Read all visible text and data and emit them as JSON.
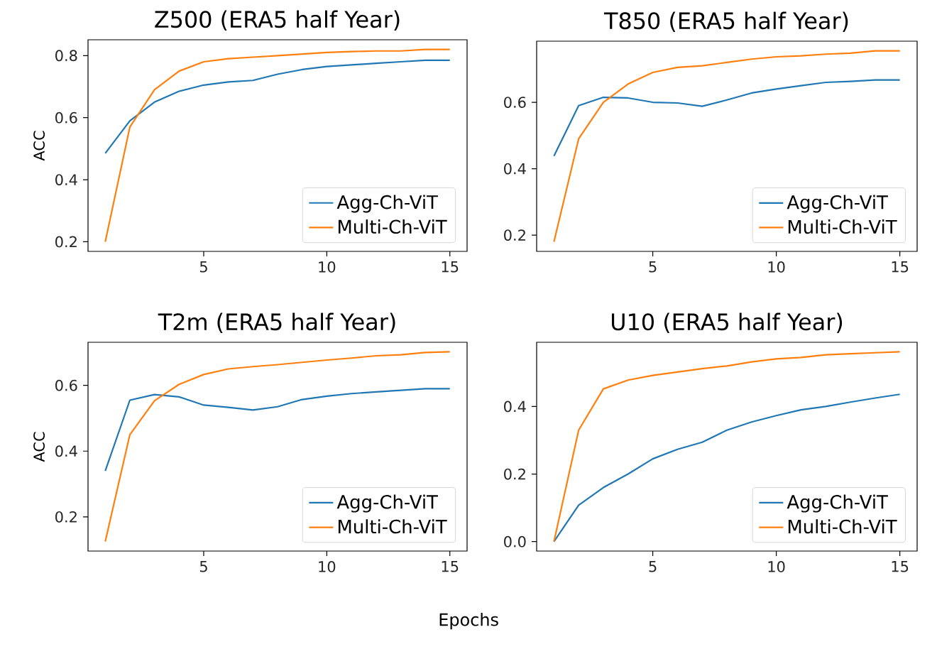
{
  "chart_data": [
    {
      "type": "line",
      "title": "Z500 (ERA5 half Year)",
      "ylabel": "ACC",
      "legend": "bottom right",
      "x": [
        1,
        2,
        3,
        4,
        5,
        6,
        7,
        8,
        9,
        10,
        11,
        12,
        13,
        14,
        15
      ],
      "xlim": [
        0.3,
        15.7
      ],
      "ylim": [
        0.169,
        0.851
      ],
      "xticks": [
        5,
        10,
        15
      ],
      "yticks": [
        0.2,
        0.4,
        0.6,
        0.8
      ],
      "series": [
        {
          "name": "Agg-Ch-ViT",
          "color": "#1f77b4",
          "values": [
            0.485,
            0.59,
            0.65,
            0.685,
            0.705,
            0.715,
            0.72,
            0.74,
            0.755,
            0.765,
            0.77,
            0.775,
            0.78,
            0.785,
            0.785
          ]
        },
        {
          "name": "Multi-Ch-ViT",
          "color": "#ff7f0e",
          "values": [
            0.2,
            0.57,
            0.69,
            0.75,
            0.78,
            0.79,
            0.795,
            0.8,
            0.805,
            0.81,
            0.813,
            0.815,
            0.815,
            0.82,
            0.82
          ]
        }
      ]
    },
    {
      "type": "line",
      "title": "T850 (ERA5 half Year)",
      "legend": "bottom right",
      "x": [
        1,
        2,
        3,
        4,
        5,
        6,
        7,
        8,
        9,
        10,
        11,
        12,
        13,
        14,
        15
      ],
      "xlim": [
        0.3,
        15.7
      ],
      "ylim": [
        0.151,
        0.784
      ],
      "xticks": [
        5,
        10,
        15
      ],
      "yticks": [
        0.2,
        0.4,
        0.6
      ],
      "series": [
        {
          "name": "Agg-Ch-ViT",
          "color": "#1f77b4",
          "values": [
            0.438,
            0.59,
            0.615,
            0.613,
            0.6,
            0.598,
            0.588,
            0.607,
            0.628,
            0.64,
            0.65,
            0.66,
            0.663,
            0.667,
            0.667
          ]
        },
        {
          "name": "Multi-Ch-ViT",
          "color": "#ff7f0e",
          "values": [
            0.18,
            0.49,
            0.6,
            0.655,
            0.69,
            0.705,
            0.71,
            0.72,
            0.73,
            0.737,
            0.74,
            0.745,
            0.748,
            0.755,
            0.755
          ]
        }
      ]
    },
    {
      "type": "line",
      "title": "T2m (ERA5 half Year)",
      "ylabel": "ACC",
      "xlabel": "Epochs",
      "legend": "bottom right",
      "x": [
        1,
        2,
        3,
        4,
        5,
        6,
        7,
        8,
        9,
        10,
        11,
        12,
        13,
        14,
        15
      ],
      "xlim": [
        0.3,
        15.7
      ],
      "ylim": [
        0.096,
        0.731
      ],
      "xticks": [
        5,
        10,
        15
      ],
      "yticks": [
        0.2,
        0.4,
        0.6
      ],
      "series": [
        {
          "name": "Agg-Ch-ViT",
          "color": "#1f77b4",
          "values": [
            0.34,
            0.555,
            0.572,
            0.565,
            0.54,
            0.533,
            0.525,
            0.535,
            0.557,
            0.567,
            0.575,
            0.58,
            0.585,
            0.59,
            0.59
          ]
        },
        {
          "name": "Multi-Ch-ViT",
          "color": "#ff7f0e",
          "values": [
            0.125,
            0.45,
            0.553,
            0.603,
            0.633,
            0.65,
            0.657,
            0.663,
            0.67,
            0.677,
            0.683,
            0.69,
            0.693,
            0.7,
            0.702
          ]
        }
      ]
    },
    {
      "type": "line",
      "title": "U10 (ERA5 half Year)",
      "legend": "bottom right",
      "x": [
        1,
        2,
        3,
        4,
        5,
        6,
        7,
        8,
        9,
        10,
        11,
        12,
        13,
        14,
        15
      ],
      "xlim": [
        0.3,
        15.7
      ],
      "ylim": [
        -0.028,
        0.59
      ],
      "xticks": [
        5,
        10,
        15
      ],
      "yticks": [
        {
          "value": 0,
          "label": "0.0"
        },
        0.2,
        0.4
      ],
      "series": [
        {
          "name": "Agg-Ch-ViT",
          "color": "#1f77b4",
          "values": [
            0,
            0.108,
            0.16,
            0.2,
            0.245,
            0.273,
            0.294,
            0.33,
            0.354,
            0.373,
            0.39,
            0.4,
            0.413,
            0.425,
            0.436
          ]
        },
        {
          "name": "Multi-Ch-ViT",
          "color": "#ff7f0e",
          "values": [
            0,
            0.33,
            0.452,
            0.478,
            0.492,
            0.502,
            0.512,
            0.52,
            0.532,
            0.541,
            0.545,
            0.553,
            0.556,
            0.559,
            0.562
          ]
        }
      ]
    }
  ]
}
